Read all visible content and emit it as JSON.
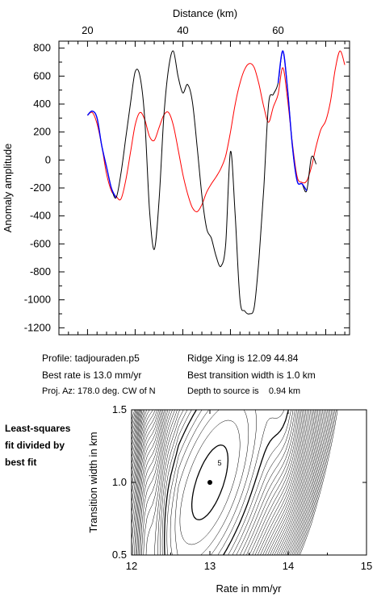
{
  "chart_data": [
    {
      "type": "line",
      "xlabel": "Distance (km)",
      "ylabel": "Anomaly amplitude",
      "xlim": [
        14,
        75
      ],
      "ylim": [
        -1250,
        850
      ],
      "x_ticks": [
        "20",
        "40",
        "60"
      ],
      "y_ticks": [
        "800",
        "600",
        "400",
        "200",
        "0",
        "-200",
        "-400",
        "-600",
        "-800",
        "-1000",
        "-1200"
      ],
      "x_tick_values": [
        20,
        40,
        60
      ],
      "y_tick_values": [
        800,
        600,
        400,
        200,
        0,
        -200,
        -400,
        -600,
        -800,
        -1000,
        -1200
      ],
      "x_axis_position": "top",
      "grid": false,
      "colors": {
        "observed": "#000000",
        "synthetic": "#ff0000",
        "fitted": "#0000ff"
      },
      "series": [
        {
          "color": "#000000",
          "x": [
            20,
            21,
            22,
            23,
            24,
            25,
            26,
            27,
            28,
            29,
            30,
            31,
            32,
            33,
            34,
            35,
            36,
            37,
            38,
            39,
            40,
            41,
            42,
            43,
            44,
            45,
            46,
            47,
            48,
            49,
            50,
            51,
            52,
            53,
            54,
            55,
            56,
            57,
            58,
            59,
            60,
            61,
            62,
            63,
            64,
            65,
            66,
            67,
            68
          ],
          "y": [
            320,
            350,
            300,
            100,
            -50,
            -200,
            -270,
            -100,
            150,
            400,
            630,
            600,
            300,
            -350,
            -640,
            -300,
            300,
            650,
            780,
            600,
            480,
            540,
            420,
            100,
            -250,
            -490,
            -560,
            -690,
            -760,
            -600,
            60,
            -400,
            -1000,
            -1080,
            -1100,
            -1050,
            -700,
            -200,
            400,
            470,
            550,
            780,
            500,
            100,
            -150,
            -170,
            -220,
            20,
            -30
          ]
        },
        {
          "color": "#ff0000",
          "x": [
            20,
            21,
            22,
            23,
            24,
            25,
            26,
            27,
            28,
            29,
            30,
            31,
            32,
            33,
            34,
            35,
            36,
            37,
            38,
            39,
            40,
            41,
            42,
            43,
            44,
            45,
            46,
            47,
            48,
            49,
            50,
            51,
            52,
            53,
            54,
            55,
            56,
            57,
            58,
            59,
            60,
            61,
            62,
            63,
            64,
            65,
            66,
            67,
            68,
            69,
            70,
            71,
            72,
            73,
            74
          ],
          "y": [
            320,
            340,
            260,
            100,
            -100,
            -220,
            -260,
            -280,
            -150,
            50,
            250,
            340,
            290,
            170,
            140,
            230,
            320,
            340,
            250,
            80,
            -100,
            -240,
            -340,
            -370,
            -320,
            -230,
            -170,
            -120,
            -60,
            30,
            200,
            400,
            550,
            650,
            690,
            660,
            540,
            380,
            270,
            380,
            470,
            660,
            430,
            120,
            -120,
            -160,
            -150,
            -50,
            100,
            220,
            280,
            420,
            650,
            780,
            680
          ]
        },
        {
          "color": "#0000ff",
          "x": [
            20,
            21,
            22,
            23,
            24,
            25,
            26
          ],
          "y": [
            320,
            350,
            300,
            100,
            -50,
            -200,
            -270
          ]
        },
        {
          "color": "#0000ff",
          "x": [
            60,
            61,
            62,
            63,
            64,
            65,
            66
          ],
          "y": [
            550,
            780,
            500,
            100,
            -150,
            -170,
            -220
          ]
        }
      ]
    },
    {
      "type": "contour",
      "xlabel": "Rate in mm/yr",
      "ylabel": "Transition width in km",
      "xlim": [
        12,
        15
      ],
      "ylim": [
        0.5,
        1.5
      ],
      "x_ticks": [
        "12",
        "13",
        "14",
        "15"
      ],
      "y_ticks": [
        "1.5",
        "1.0",
        "0.5"
      ],
      "x_tick_values": [
        12,
        13,
        14,
        15
      ],
      "y_tick_values": [
        1.5,
        1.0,
        0.5
      ],
      "best_fit": {
        "rate": 13.0,
        "width": 1.0
      },
      "contour_label": "5"
    }
  ],
  "info": {
    "profile": "Profile: tadjouraden.p5",
    "best_rate": "Best rate is 13.0 mm/yr",
    "proj_az": "Proj. Az: 178.0 deg. CW of N",
    "ridge_xing": "Ridge Xing is 12.09 44.84",
    "best_width": "Best transition width is 1.0 km",
    "depth": "Depth to source is    0.94 km"
  },
  "side_caption": [
    "Least-squares",
    "fit divided by",
    "best fit"
  ]
}
